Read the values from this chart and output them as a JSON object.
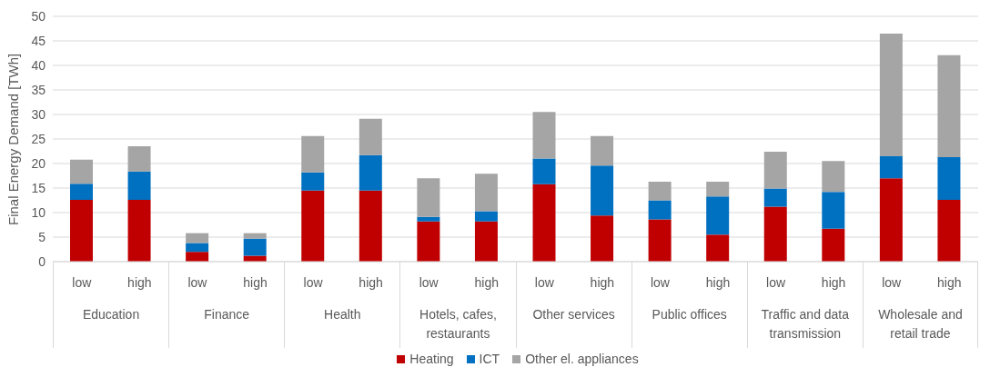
{
  "chart_data": {
    "type": "bar",
    "stacked": true,
    "ylabel": "Final Energy Demand [TWh]",
    "categories": [
      "low",
      "high",
      "low",
      "high",
      "low",
      "high",
      "low",
      "high",
      "low",
      "high",
      "low",
      "high",
      "low",
      "high",
      "low",
      "high"
    ],
    "annotations": [
      "Education",
      "Finance",
      "Health",
      "Hotels, cafes, restaurants",
      "Other services",
      "Public offices",
      "Traffic and data transmission",
      "Wholesale and retail trade"
    ],
    "series": [
      {
        "name": "Heating",
        "color": "#c00000",
        "values": [
          12.6,
          12.6,
          2.0,
          1.2,
          14.5,
          14.5,
          8.2,
          8.2,
          15.8,
          9.4,
          8.6,
          5.5,
          11.2,
          6.7,
          17.0,
          12.6
        ]
      },
      {
        "name": "ICT",
        "color": "#0070c0",
        "values": [
          3.3,
          5.8,
          1.8,
          3.5,
          3.7,
          7.2,
          0.9,
          2.1,
          5.2,
          10.2,
          3.9,
          7.8,
          3.7,
          7.5,
          4.5,
          8.7
        ]
      },
      {
        "name": "Other el. appliances",
        "color": "#a5a5a5",
        "values": [
          4.9,
          5.1,
          2.0,
          1.1,
          7.4,
          7.4,
          7.9,
          7.6,
          9.5,
          6.0,
          3.8,
          3.0,
          7.5,
          6.3,
          25.0,
          20.8
        ]
      }
    ],
    "ylim": [
      0,
      50
    ],
    "yticks": [
      0,
      5,
      10,
      15,
      20,
      25,
      30,
      35,
      40,
      45,
      50
    ],
    "grid": "y",
    "legend": "bottom"
  }
}
